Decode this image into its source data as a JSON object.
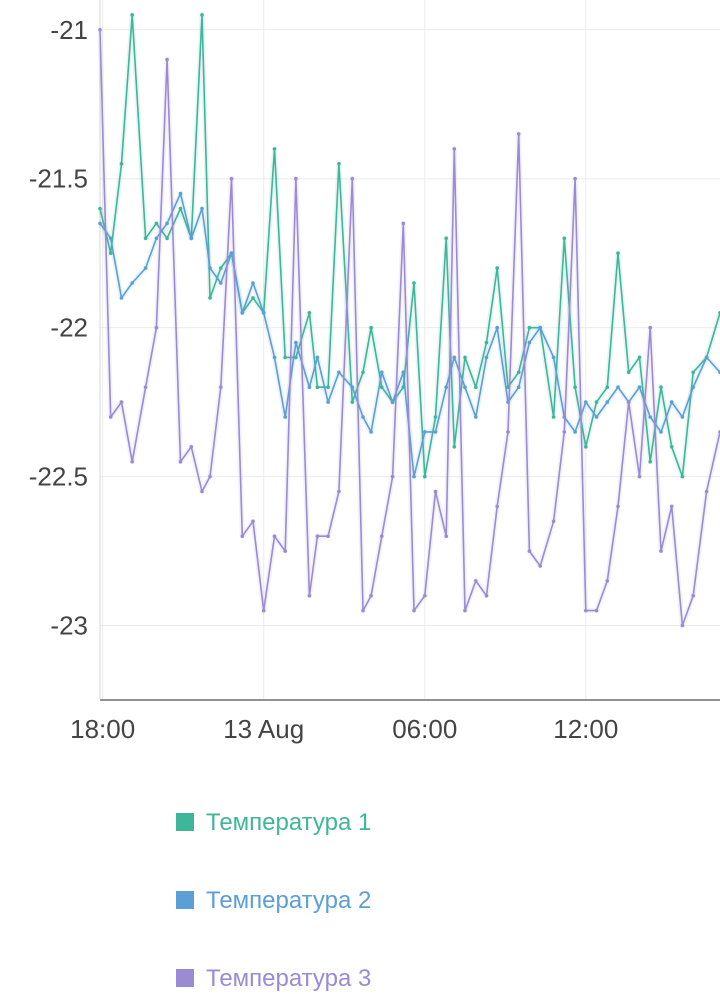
{
  "chart_data": {
    "type": "line",
    "title": "",
    "xlabel": "",
    "ylabel": "",
    "x_unit": "hours",
    "x_ticks": [
      {
        "x": 18,
        "label": "18:00"
      },
      {
        "x": 24,
        "label": "13 Aug"
      },
      {
        "x": 30,
        "label": "06:00"
      },
      {
        "x": 36,
        "label": "12:00"
      }
    ],
    "y_ticks": [
      {
        "y": -21,
        "label": "-21"
      },
      {
        "y": -21.5,
        "label": "-21.5"
      },
      {
        "y": -22,
        "label": "-22"
      },
      {
        "y": -22.5,
        "label": "-22.5"
      },
      {
        "y": -23,
        "label": "-23"
      }
    ],
    "xlim": [
      17.9,
      41.0
    ],
    "ylim": [
      -23.25,
      -20.9
    ],
    "grid": true,
    "legend_position": "bottom",
    "series": [
      {
        "name": "Температура 1",
        "color": "#3fb59a",
        "x": [
          17.9,
          18.3,
          18.7,
          19.1,
          19.6,
          20.0,
          20.4,
          20.9,
          21.3,
          21.7,
          22.0,
          22.4,
          22.8,
          23.2,
          23.6,
          24.0,
          24.4,
          24.8,
          25.2,
          25.7,
          26.0,
          26.4,
          26.8,
          27.3,
          27.7,
          28.0,
          28.4,
          28.8,
          29.2,
          29.6,
          30.0,
          30.4,
          30.8,
          31.1,
          31.5,
          31.9,
          32.3,
          32.7,
          33.1,
          33.5,
          33.9,
          34.3,
          34.8,
          35.2,
          35.6,
          36.0,
          36.4,
          36.8,
          37.2,
          37.6,
          38.0,
          38.4,
          38.8,
          39.2,
          39.6,
          40.0,
          40.5,
          41.0
        ],
        "y": [
          -21.6,
          -21.75,
          -21.45,
          -20.95,
          -21.7,
          -21.65,
          -21.7,
          -21.6,
          -21.7,
          -20.95,
          -21.9,
          -21.8,
          -21.75,
          -21.95,
          -21.9,
          -21.95,
          -21.4,
          -22.1,
          -22.1,
          -21.95,
          -22.2,
          -22.2,
          -21.45,
          -22.25,
          -22.15,
          -22.0,
          -22.2,
          -22.25,
          -22.2,
          -21.85,
          -22.5,
          -22.3,
          -21.7,
          -22.4,
          -22.1,
          -22.2,
          -22.05,
          -21.8,
          -22.2,
          -22.15,
          -22.0,
          -22.0,
          -22.3,
          -21.7,
          -22.2,
          -22.4,
          -22.25,
          -22.2,
          -21.75,
          -22.15,
          -22.1,
          -22.45,
          -22.2,
          -22.4,
          -22.5,
          -22.15,
          -22.1,
          -21.95
        ]
      },
      {
        "name": "Температура 2",
        "color": "#5b9fd6",
        "x": [
          17.9,
          18.3,
          18.7,
          19.1,
          19.6,
          20.0,
          20.4,
          20.9,
          21.3,
          21.7,
          22.0,
          22.4,
          22.8,
          23.2,
          23.6,
          24.0,
          24.4,
          24.8,
          25.2,
          25.7,
          26.0,
          26.4,
          26.8,
          27.3,
          27.7,
          28.0,
          28.4,
          28.8,
          29.2,
          29.6,
          30.0,
          30.4,
          30.8,
          31.1,
          31.5,
          31.9,
          32.3,
          32.7,
          33.1,
          33.5,
          33.9,
          34.3,
          34.8,
          35.2,
          35.6,
          36.0,
          36.4,
          36.8,
          37.2,
          37.6,
          38.0,
          38.4,
          38.8,
          39.2,
          39.6,
          40.0,
          40.5,
          41.0
        ],
        "y": [
          -21.65,
          -21.7,
          -21.9,
          -21.85,
          -21.8,
          -21.7,
          -21.65,
          -21.55,
          -21.7,
          -21.6,
          -21.8,
          -21.85,
          -21.75,
          -21.95,
          -21.85,
          -21.95,
          -22.1,
          -22.3,
          -22.05,
          -22.2,
          -22.1,
          -22.25,
          -22.15,
          -22.2,
          -22.3,
          -22.35,
          -22.15,
          -22.25,
          -22.15,
          -22.5,
          -22.35,
          -22.35,
          -22.2,
          -22.1,
          -22.2,
          -22.3,
          -22.1,
          -22.0,
          -22.25,
          -22.2,
          -22.05,
          -22.0,
          -22.1,
          -22.3,
          -22.35,
          -22.25,
          -22.3,
          -22.25,
          -22.2,
          -22.25,
          -22.2,
          -22.3,
          -22.35,
          -22.25,
          -22.3,
          -22.2,
          -22.1,
          -22.15
        ]
      },
      {
        "name": "Температура 3",
        "color": "#9b8bd4",
        "x": [
          17.9,
          18.3,
          18.7,
          19.1,
          19.6,
          20.0,
          20.4,
          20.9,
          21.3,
          21.7,
          22.0,
          22.4,
          22.8,
          23.2,
          23.6,
          24.0,
          24.4,
          24.8,
          25.2,
          25.7,
          26.0,
          26.4,
          26.8,
          27.3,
          27.7,
          28.0,
          28.4,
          28.8,
          29.2,
          29.6,
          30.0,
          30.4,
          30.8,
          31.1,
          31.5,
          31.9,
          32.3,
          32.7,
          33.1,
          33.5,
          33.9,
          34.3,
          34.8,
          35.2,
          35.6,
          36.0,
          36.4,
          36.8,
          37.2,
          37.6,
          38.0,
          38.4,
          38.8,
          39.2,
          39.6,
          40.0,
          40.5,
          41.0
        ],
        "y": [
          -21.0,
          -22.3,
          -22.25,
          -22.45,
          -22.2,
          -22.0,
          -21.1,
          -22.45,
          -22.4,
          -22.55,
          -22.5,
          -22.2,
          -21.5,
          -22.7,
          -22.65,
          -22.95,
          -22.7,
          -22.75,
          -21.5,
          -22.9,
          -22.7,
          -22.7,
          -22.55,
          -21.5,
          -22.95,
          -22.9,
          -22.7,
          -22.5,
          -21.65,
          -22.95,
          -22.9,
          -22.55,
          -22.7,
          -21.4,
          -22.95,
          -22.85,
          -22.9,
          -22.6,
          -22.35,
          -21.35,
          -22.75,
          -22.8,
          -22.65,
          -22.35,
          -21.5,
          -22.95,
          -22.95,
          -22.85,
          -22.6,
          -22.25,
          -22.5,
          -22.0,
          -22.75,
          -22.6,
          -23.0,
          -22.9,
          -22.55,
          -22.35
        ]
      }
    ]
  }
}
